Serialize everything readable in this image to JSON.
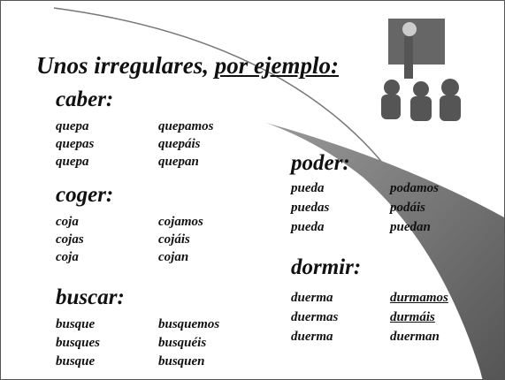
{
  "title": {
    "lead": "Unos irregulares, ",
    "underlined": "por ejemplo:"
  },
  "verbs": [
    {
      "name": "caber:",
      "forms": [
        "quepa",
        "quepas",
        "quepa",
        "quepamos",
        "quepáis",
        "quepan"
      ],
      "underlined": []
    },
    {
      "name": "coger:",
      "forms": [
        "coja",
        "cojas",
        "coja",
        "cojamos",
        "cojáis",
        "cojan"
      ],
      "underlined": []
    },
    {
      "name": "buscar:",
      "forms": [
        "busque",
        "busques",
        "busque",
        "busquemos",
        "busquéis",
        "busquen"
      ],
      "underlined": []
    },
    {
      "name": "poder:",
      "forms": [
        "pueda",
        "puedas",
        "pueda",
        "podamos",
        "podáis",
        "puedan"
      ],
      "underlined": []
    },
    {
      "name": "dormir:",
      "forms": [
        "duerma",
        "duermas",
        "duerma",
        "durmamos",
        "durmáis",
        "duerman"
      ],
      "underlined": [
        3,
        4
      ]
    }
  ]
}
